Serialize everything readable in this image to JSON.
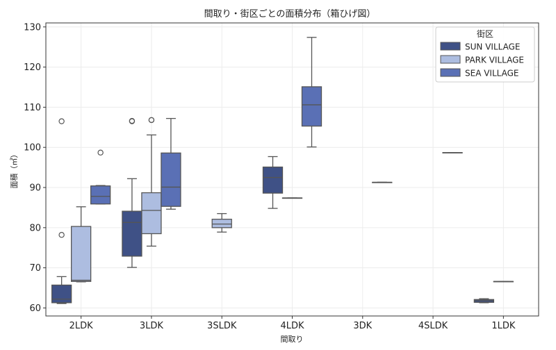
{
  "chart_data": {
    "type": "box",
    "title": "間取り・街区ごとの面積分布（箱ひげ図）",
    "xlabel": "間取り",
    "ylabel": "面積（㎡）",
    "ylim": [
      58,
      131
    ],
    "yticks": [
      60,
      70,
      80,
      90,
      100,
      110,
      120,
      130
    ],
    "categories": [
      "2LDK",
      "3LDK",
      "3SLDK",
      "4LDK",
      "3DK",
      "4SLDK",
      "1LDK"
    ],
    "legend": {
      "title": "街区",
      "position": "top-right"
    },
    "series": [
      {
        "name": "SUN VILLAGE",
        "color": "#3f5186",
        "boxes": [
          {
            "category": "2LDK",
            "min": 61.1,
            "q1": 61.3,
            "median": 62.2,
            "q3": 65.7,
            "max": 67.8,
            "outliers": [
              78.2,
              106.5
            ]
          },
          {
            "category": "3LDK",
            "min": 70.1,
            "q1": 72.9,
            "median": 81.3,
            "q3": 84.1,
            "max": 92.2,
            "outliers": [
              106.5,
              106.6
            ]
          },
          {
            "category": "4LDK",
            "min": 84.8,
            "q1": 88.6,
            "median": 92.5,
            "q3": 95.1,
            "max": 97.7,
            "outliers": []
          },
          {
            "category": "1LDK",
            "min": 61.3,
            "q1": 61.4,
            "median": 61.8,
            "q3": 62.1,
            "max": 62.3,
            "outliers": []
          }
        ]
      },
      {
        "name": "PARK VILLAGE",
        "color": "#adbde0",
        "boxes": [
          {
            "category": "2LDK",
            "min": 66.5,
            "q1": 66.6,
            "median": 66.9,
            "q3": 80.3,
            "max": 85.2,
            "outliers": []
          },
          {
            "category": "3LDK",
            "min": 75.4,
            "q1": 78.5,
            "median": 84.3,
            "q3": 88.7,
            "max": 103.1,
            "outliers": [
              106.8,
              106.8
            ]
          },
          {
            "category": "3SLDK",
            "min": 78.9,
            "q1": 80.0,
            "median": 80.9,
            "q3": 82.1,
            "max": 83.5,
            "outliers": []
          },
          {
            "category": "4LDK",
            "min": 87.4,
            "q1": 87.4,
            "median": 87.4,
            "q3": 87.4,
            "max": 87.4,
            "outliers": []
          },
          {
            "category": "1LDK",
            "min": 66.6,
            "q1": 66.6,
            "median": 66.6,
            "q3": 66.6,
            "max": 66.6,
            "outliers": []
          }
        ]
      },
      {
        "name": "SEA VILLAGE",
        "color": "#5a70b5",
        "boxes": [
          {
            "category": "2LDK",
            "min": 85.9,
            "q1": 85.9,
            "median": 87.8,
            "q3": 90.4,
            "max": 90.5,
            "outliers": [
              98.7
            ]
          },
          {
            "category": "3LDK",
            "min": 84.6,
            "q1": 85.3,
            "median": 90.1,
            "q3": 98.6,
            "max": 107.2,
            "outliers": []
          },
          {
            "category": "4LDK",
            "min": 100.1,
            "q1": 105.3,
            "median": 110.6,
            "q3": 115.1,
            "max": 127.4,
            "outliers": []
          },
          {
            "category": "3DK",
            "min": 91.3,
            "q1": 91.3,
            "median": 91.3,
            "q3": 91.3,
            "max": 91.3,
            "outliers": []
          },
          {
            "category": "4SLDK",
            "min": 98.7,
            "q1": 98.7,
            "median": 98.7,
            "q3": 98.7,
            "max": 98.7,
            "outliers": []
          }
        ]
      }
    ]
  }
}
